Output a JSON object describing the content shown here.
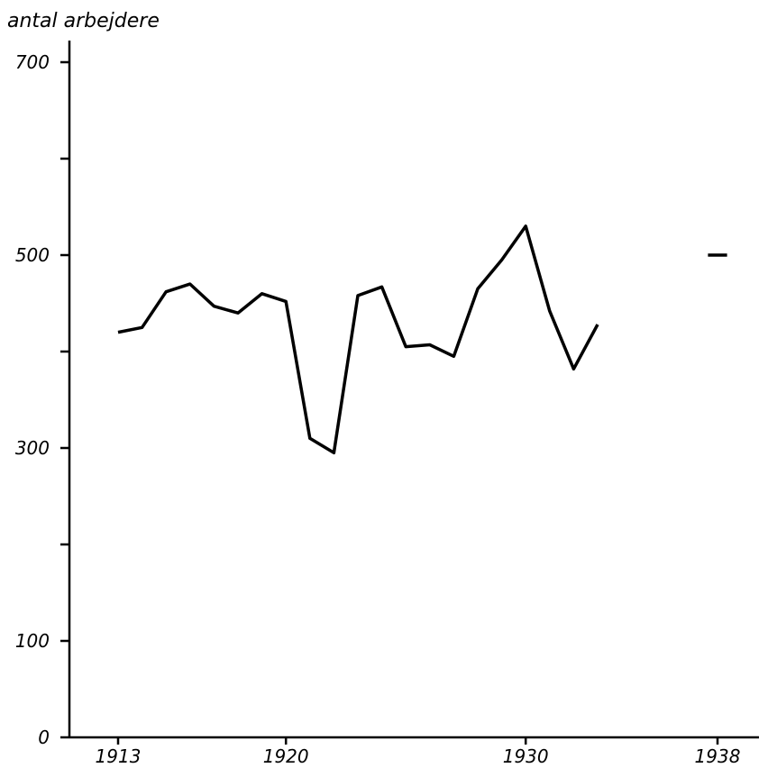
{
  "chart_data": {
    "type": "line",
    "title": "",
    "xlabel": "",
    "ylabel": "antal arbejdere",
    "xlim": [
      1912.5,
      1939.5
    ],
    "ylim": [
      0,
      700
    ],
    "x_ticks": [
      {
        "value": 1913,
        "label": "1913"
      },
      {
        "value": 1920,
        "label": "1920"
      },
      {
        "value": 1930,
        "label": "1930"
      },
      {
        "value": 1938,
        "label": "1938"
      }
    ],
    "x_minor_ticks": [],
    "y_ticks": [
      {
        "value": 0,
        "label": "0"
      },
      {
        "value": 100,
        "label": "100"
      },
      {
        "value": 200,
        "label": ""
      },
      {
        "value": 300,
        "label": "300"
      },
      {
        "value": 400,
        "label": ""
      },
      {
        "value": 500,
        "label": "500"
      },
      {
        "value": 600,
        "label": ""
      },
      {
        "value": 700,
        "label": "700"
      }
    ],
    "grid": false,
    "series": [
      {
        "segments": [
          [
            {
              "x": 1913,
              "y": 420
            },
            {
              "x": 1914,
              "y": 425
            },
            {
              "x": 1915,
              "y": 462
            },
            {
              "x": 1916,
              "y": 470
            },
            {
              "x": 1917,
              "y": 447
            },
            {
              "x": 1918,
              "y": 440
            },
            {
              "x": 1919,
              "y": 460
            },
            {
              "x": 1920,
              "y": 452
            },
            {
              "x": 1921,
              "y": 310
            },
            {
              "x": 1922,
              "y": 295
            },
            {
              "x": 1923,
              "y": 458
            },
            {
              "x": 1924,
              "y": 467
            },
            {
              "x": 1925,
              "y": 405
            },
            {
              "x": 1926,
              "y": 407
            },
            {
              "x": 1927,
              "y": 395
            },
            {
              "x": 1928,
              "y": 465
            },
            {
              "x": 1929,
              "y": 495
            },
            {
              "x": 1930,
              "y": 530
            },
            {
              "x": 1931,
              "y": 442
            },
            {
              "x": 1932,
              "y": 382
            },
            {
              "x": 1933,
              "y": 428
            }
          ],
          [
            {
              "x": 1937.6,
              "y": 500
            },
            {
              "x": 1938.4,
              "y": 500
            }
          ]
        ]
      }
    ]
  }
}
